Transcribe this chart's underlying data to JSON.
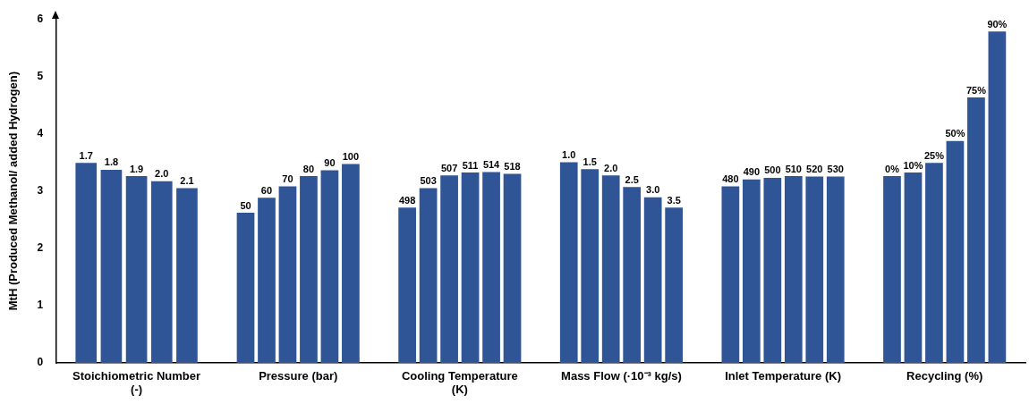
{
  "chart_data": {
    "type": "bar",
    "ylabel": "MtH (Produced Methanol/ added Hydrogen)",
    "categories": [
      "Stoichiometric Number (-)",
      "Pressure (bar)",
      "Cooling Temperature (K)",
      "Mass Flow (·10⁻³ kg/s)",
      "Inlet Temperature (K)",
      "Recycling (%)"
    ],
    "series": [
      {
        "color": "#2f5597",
        "values": [
          3.49,
          2.62,
          2.71,
          3.5,
          3.08,
          3.26
        ]
      },
      {
        "color": "#2f5597",
        "values": [
          3.37,
          2.88,
          3.05,
          3.38,
          3.2,
          3.32
        ]
      },
      {
        "color": "#2f5597",
        "values": [
          3.26,
          3.08,
          3.27,
          3.27,
          3.23,
          3.49
        ]
      },
      {
        "color": "#2f5597",
        "values": [
          3.17,
          3.26,
          3.32,
          3.07,
          3.26,
          3.87
        ]
      },
      {
        "color": "#2f5597",
        "values": [
          3.05,
          3.36,
          3.33,
          2.89,
          3.25,
          4.63
        ]
      },
      {
        "color": "#2f5597",
        "values": [
          null,
          3.47,
          3.3,
          2.71,
          3.25,
          5.78
        ]
      }
    ],
    "annotations": [
      "1.7",
      "1.8",
      "1.9",
      "2.0",
      "2.1",
      "50",
      "60",
      "70",
      "80",
      "90",
      "100",
      "498",
      "503",
      "507",
      "511",
      "514",
      "518",
      "1.0",
      "1.5",
      "2.0",
      "2.5",
      "3.0",
      "3.5",
      "480",
      "490",
      "500",
      "510",
      "520",
      "530",
      "0%",
      "10%",
      "25%",
      "50%",
      "75%",
      "90%"
    ],
    "ylim": [
      0,
      6
    ],
    "yticks": [
      0,
      1,
      2,
      3,
      4,
      5,
      6
    ],
    "grid": false,
    "legend": false
  }
}
